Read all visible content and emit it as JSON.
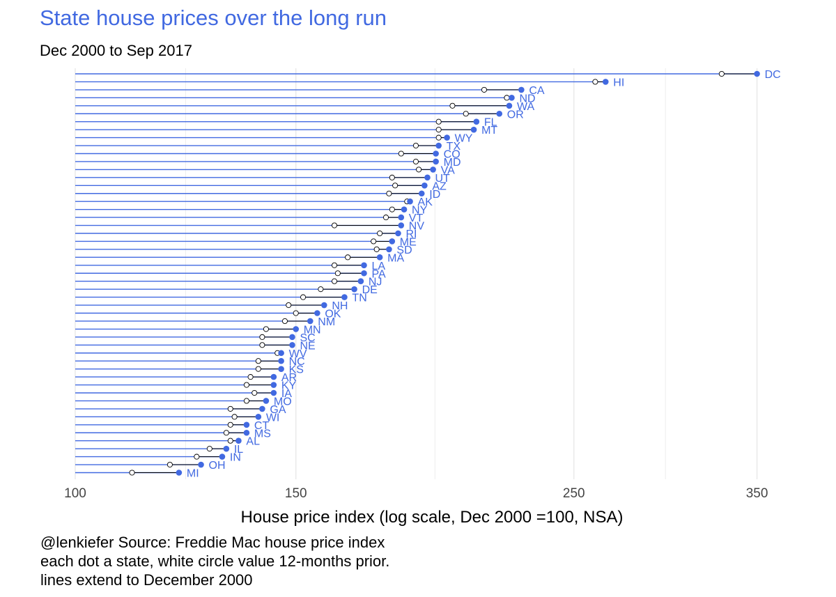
{
  "title": "State house prices over the long run",
  "subtitle": "Dec 2000 to Sep 2017",
  "caption": [
    "@lenkiefer Source: Freddie Mac house price index",
    "each dot a state, white circle value 12-months prior.",
    "lines extend to December 2000"
  ],
  "colors": {
    "accent": "#4169e1",
    "prior_fill": "#ffffff",
    "prior_stroke": "#000000",
    "grid": "#e8e8e8",
    "connector": "#000000"
  },
  "chart_data": {
    "type": "scatter",
    "xlabel": "House price index (log scale, Dec 2000 =100, NSA)",
    "x_scale": "log",
    "xlim": [
      100,
      370
    ],
    "x_ticks": [
      100,
      150,
      250,
      350
    ],
    "grid": true,
    "legend": "none",
    "series": [
      {
        "name": "current",
        "state": [
          "DC",
          "HI",
          "CA",
          "ND",
          "WA",
          "OR",
          "FL",
          "MT",
          "WY",
          "TX",
          "CO",
          "MD",
          "VA",
          "UT",
          "AZ",
          "ID",
          "AK",
          "NY",
          "VT",
          "NV",
          "RI",
          "ME",
          "SD",
          "MA",
          "LA",
          "PA",
          "NJ",
          "DE",
          "TN",
          "NH",
          "OK",
          "NM",
          "MN",
          "SC",
          "NE",
          "WV",
          "NC",
          "KS",
          "AR",
          "KY",
          "IA",
          "MO",
          "GA",
          "WI",
          "CT",
          "MS",
          "AL",
          "IL",
          "IN",
          "OH",
          "MI"
        ],
        "values": [
          350,
          265,
          227,
          223,
          222,
          218,
          209,
          208,
          198,
          195,
          194,
          194,
          193,
          191,
          190,
          189,
          185,
          183,
          182,
          182,
          181,
          179,
          178,
          175,
          170,
          170,
          169,
          167,
          164,
          158,
          156,
          154,
          150,
          149,
          149,
          146,
          146,
          146,
          144,
          144,
          144,
          142,
          141,
          140,
          137,
          137,
          135,
          132,
          131,
          126,
          121
        ]
      },
      {
        "name": "12 months prior",
        "state": [
          "DC",
          "HI",
          "CA",
          "ND",
          "WA",
          "OR",
          "FL",
          "MT",
          "WY",
          "TX",
          "CO",
          "MD",
          "VA",
          "UT",
          "AZ",
          "ID",
          "AK",
          "NY",
          "VT",
          "NV",
          "RI",
          "ME",
          "SD",
          "MA",
          "LA",
          "PA",
          "NJ",
          "DE",
          "TN",
          "NH",
          "OK",
          "NM",
          "MN",
          "SC",
          "NE",
          "WV",
          "NC",
          "KS",
          "AR",
          "KY",
          "IA",
          "MO",
          "GA",
          "WI",
          "CT",
          "MS",
          "AL",
          "IL",
          "IN",
          "OH",
          "MI"
        ],
        "values": [
          328,
          260,
          212,
          221,
          200,
          205,
          195,
          195,
          195,
          187,
          182,
          187,
          188,
          179,
          180,
          178,
          184,
          179,
          177,
          161,
          175,
          173,
          174,
          165,
          161,
          162,
          161,
          157,
          152,
          148,
          150,
          147,
          142,
          141,
          141,
          145,
          140,
          140,
          138,
          137,
          139,
          137,
          133,
          134,
          133,
          132,
          133,
          128,
          125,
          119,
          111
        ]
      }
    ]
  }
}
